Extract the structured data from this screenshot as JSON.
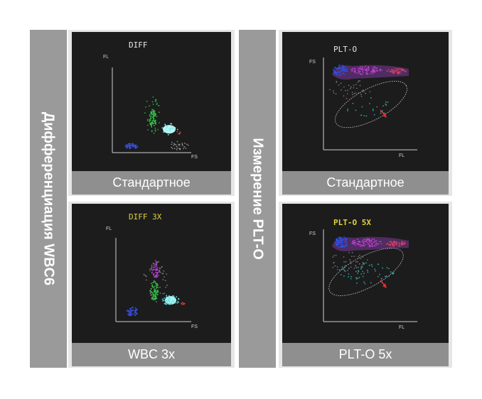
{
  "left_group": {
    "side_label": "Дифференциация WBC6",
    "panels": [
      {
        "title": "DIFF",
        "title_color": "#e8e8e8",
        "x_axis": "FS",
        "y_axis": "FL",
        "caption": "Стандартное"
      },
      {
        "title": "DIFF 3X",
        "title_color": "#e0d23a",
        "x_axis": "FS",
        "y_axis": "FL",
        "caption": "WBC 3x"
      }
    ]
  },
  "right_group": {
    "side_label": "Измерение PLT-O",
    "panels": [
      {
        "title": "PLT-O",
        "title_color": "#e8e8e8",
        "x_axis": "FL",
        "y_axis": "FS",
        "caption": "Стандартное"
      },
      {
        "title": "PLT-O 5X",
        "title_color": "#e0d23a",
        "x_axis": "FL",
        "y_axis": "FS",
        "caption": "PLT-O 5x"
      }
    ]
  },
  "colors": {
    "plot_bg": "#1c1c1c",
    "caption_bg": "#8f8f8f",
    "side_bg": "#9a9a9a",
    "arrow": "#e03030"
  }
}
